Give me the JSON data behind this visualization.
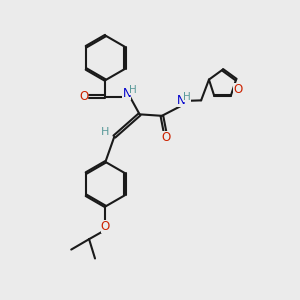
{
  "bg_color": "#ebebeb",
  "bond_color": "#1a1a1a",
  "oxygen_color": "#cc2200",
  "nitrogen_color": "#0000cc",
  "hydrogen_color": "#5a9a9a",
  "line_width": 1.5,
  "xlim": [
    0,
    10
  ],
  "ylim": [
    0,
    10
  ]
}
